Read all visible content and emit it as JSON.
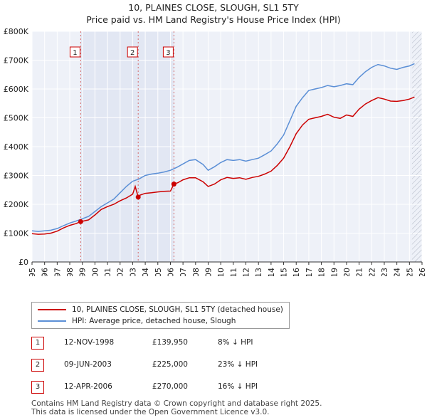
{
  "title": "10, PLAINES CLOSE, SLOUGH, SL1 5TY",
  "subtitle": "Price paid vs. HM Land Registry's House Price Index (HPI)",
  "chart_data": {
    "type": "line",
    "y_ticks": [
      "£0",
      "£100K",
      "£200K",
      "£300K",
      "£400K",
      "£500K",
      "£600K",
      "£700K",
      "£800K"
    ],
    "y_range": [
      0,
      800000
    ],
    "x_ticks": [
      "1995",
      "1996",
      "1997",
      "1998",
      "1999",
      "2000",
      "2001",
      "2002",
      "2003",
      "2004",
      "2005",
      "2006",
      "2007",
      "2008",
      "2009",
      "2010",
      "2011",
      "2012",
      "2013",
      "2014",
      "2015",
      "2016",
      "2017",
      "2018",
      "2019",
      "2020",
      "2021",
      "2022",
      "2023",
      "2024",
      "2025",
      "2026"
    ],
    "x_range": [
      1995,
      2026
    ],
    "grid": true,
    "shaded_periods": [
      [
        1998.87,
        2006.28
      ]
    ],
    "forecast_from": 2025.2,
    "series": [
      {
        "name": "10, PLAINES CLOSE, SLOUGH, SL1 5TY (detached house)",
        "color": "#cc0000",
        "points": [
          [
            1995,
            98000
          ],
          [
            1995.5,
            96000
          ],
          [
            1996,
            97000
          ],
          [
            1996.5,
            100000
          ],
          [
            1997,
            107000
          ],
          [
            1997.5,
            118000
          ],
          [
            1998,
            127000
          ],
          [
            1998.5,
            133000
          ],
          [
            1998.87,
            139950
          ],
          [
            1999,
            141000
          ],
          [
            1999.5,
            146000
          ],
          [
            2000,
            163000
          ],
          [
            2000.5,
            182000
          ],
          [
            2001,
            192000
          ],
          [
            2001.5,
            200000
          ],
          [
            2002,
            212000
          ],
          [
            2002.5,
            222000
          ],
          [
            2003,
            235000
          ],
          [
            2003.2,
            262000
          ],
          [
            2003.44,
            225000
          ],
          [
            2003.6,
            232000
          ],
          [
            2004,
            238000
          ],
          [
            2004.5,
            240000
          ],
          [
            2005,
            243000
          ],
          [
            2005.5,
            245000
          ],
          [
            2006,
            246000
          ],
          [
            2006.28,
            270000
          ],
          [
            2006.6,
            275000
          ],
          [
            2007,
            285000
          ],
          [
            2007.5,
            292000
          ],
          [
            2008,
            292000
          ],
          [
            2008.6,
            278000
          ],
          [
            2009,
            262000
          ],
          [
            2009.5,
            270000
          ],
          [
            2010,
            285000
          ],
          [
            2010.5,
            293000
          ],
          [
            2011,
            290000
          ],
          [
            2011.5,
            292000
          ],
          [
            2012,
            287000
          ],
          [
            2012.5,
            293000
          ],
          [
            2013,
            297000
          ],
          [
            2013.5,
            305000
          ],
          [
            2014,
            315000
          ],
          [
            2014.5,
            335000
          ],
          [
            2015,
            360000
          ],
          [
            2015.5,
            400000
          ],
          [
            2016,
            445000
          ],
          [
            2016.5,
            475000
          ],
          [
            2017,
            495000
          ],
          [
            2017.5,
            500000
          ],
          [
            2018,
            505000
          ],
          [
            2018.5,
            512000
          ],
          [
            2019,
            502000
          ],
          [
            2019.5,
            498000
          ],
          [
            2020,
            510000
          ],
          [
            2020.5,
            505000
          ],
          [
            2021,
            530000
          ],
          [
            2021.5,
            548000
          ],
          [
            2022,
            560000
          ],
          [
            2022.5,
            570000
          ],
          [
            2023,
            565000
          ],
          [
            2023.5,
            558000
          ],
          [
            2024,
            557000
          ],
          [
            2024.5,
            560000
          ],
          [
            2025,
            565000
          ],
          [
            2025.4,
            572000
          ]
        ]
      },
      {
        "name": "HPI: Average price, detached house, Slough",
        "color": "#5b8fd6",
        "points": [
          [
            1995,
            108000
          ],
          [
            1995.5,
            106000
          ],
          [
            1996,
            108000
          ],
          [
            1996.5,
            110000
          ],
          [
            1997,
            116000
          ],
          [
            1997.5,
            126000
          ],
          [
            1998,
            135000
          ],
          [
            1998.5,
            142000
          ],
          [
            1999,
            150000
          ],
          [
            1999.5,
            158000
          ],
          [
            2000,
            175000
          ],
          [
            2000.5,
            192000
          ],
          [
            2001,
            205000
          ],
          [
            2001.5,
            218000
          ],
          [
            2002,
            240000
          ],
          [
            2002.5,
            262000
          ],
          [
            2003,
            280000
          ],
          [
            2003.5,
            288000
          ],
          [
            2004,
            300000
          ],
          [
            2004.5,
            305000
          ],
          [
            2005,
            308000
          ],
          [
            2005.5,
            312000
          ],
          [
            2006,
            318000
          ],
          [
            2006.5,
            328000
          ],
          [
            2007,
            340000
          ],
          [
            2007.5,
            352000
          ],
          [
            2008,
            355000
          ],
          [
            2008.6,
            338000
          ],
          [
            2009,
            318000
          ],
          [
            2009.5,
            330000
          ],
          [
            2010,
            345000
          ],
          [
            2010.5,
            355000
          ],
          [
            2011,
            352000
          ],
          [
            2011.5,
            355000
          ],
          [
            2012,
            350000
          ],
          [
            2012.5,
            355000
          ],
          [
            2013,
            360000
          ],
          [
            2013.5,
            372000
          ],
          [
            2014,
            385000
          ],
          [
            2014.5,
            410000
          ],
          [
            2015,
            440000
          ],
          [
            2015.5,
            490000
          ],
          [
            2016,
            540000
          ],
          [
            2016.5,
            570000
          ],
          [
            2017,
            595000
          ],
          [
            2017.5,
            600000
          ],
          [
            2018,
            605000
          ],
          [
            2018.5,
            612000
          ],
          [
            2019,
            608000
          ],
          [
            2019.5,
            612000
          ],
          [
            2020,
            618000
          ],
          [
            2020.5,
            615000
          ],
          [
            2021,
            640000
          ],
          [
            2021.5,
            660000
          ],
          [
            2022,
            675000
          ],
          [
            2022.5,
            685000
          ],
          [
            2023,
            680000
          ],
          [
            2023.5,
            672000
          ],
          [
            2024,
            668000
          ],
          [
            2024.5,
            675000
          ],
          [
            2025,
            680000
          ],
          [
            2025.4,
            688000
          ]
        ]
      }
    ],
    "sales": [
      {
        "label": "1",
        "x": 1998.87,
        "price": 139950
      },
      {
        "label": "2",
        "x": 2003.44,
        "price": 225000
      },
      {
        "label": "3",
        "x": 2006.28,
        "price": 270000
      }
    ]
  },
  "legend": {
    "property_label": "10, PLAINES CLOSE, SLOUGH, SL1 5TY (detached house)",
    "hpi_label": "HPI: Average price, detached house, Slough"
  },
  "transactions": [
    {
      "num": "1",
      "date": "12-NOV-1998",
      "price": "£139,950",
      "hpi": "8% ↓ HPI"
    },
    {
      "num": "2",
      "date": "09-JUN-2003",
      "price": "£225,000",
      "hpi": "23% ↓ HPI"
    },
    {
      "num": "3",
      "date": "12-APR-2006",
      "price": "£270,000",
      "hpi": "16% ↓ HPI"
    }
  ],
  "footer": {
    "line1": "Contains HM Land Registry data © Crown copyright and database right 2025.",
    "line2": "This data is licensed under the Open Government Licence v3.0."
  }
}
